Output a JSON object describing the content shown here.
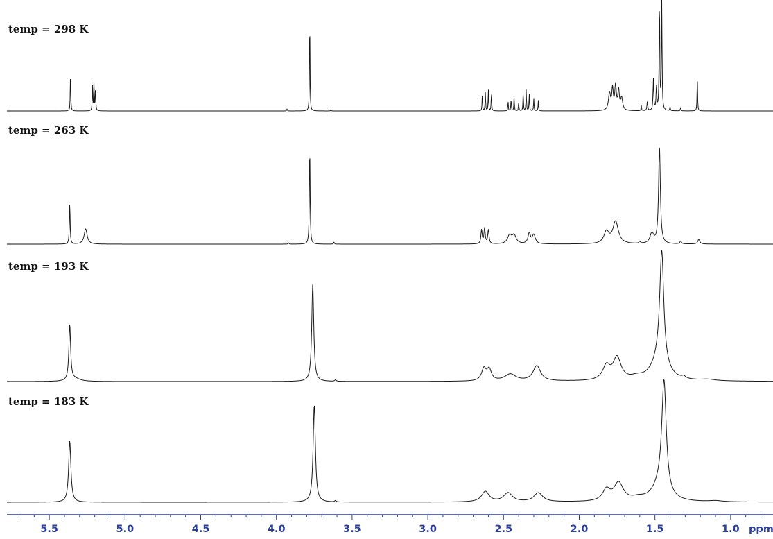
{
  "chart_data": {
    "type": "line",
    "title": "",
    "xlabel": "ppm",
    "ylabel": "",
    "x_reversed": true,
    "xlim": [
      5.78,
      0.72
    ],
    "ticks_major": [
      5.5,
      5.0,
      4.5,
      4.0,
      3.5,
      3.0,
      2.5,
      2.0,
      1.5,
      1.0
    ],
    "tick_labels": [
      "5.5",
      "5.0",
      "4.5",
      "4.0",
      "3.5",
      "3.0",
      "2.5",
      "2.0",
      "1.5",
      "1.0"
    ],
    "minor_tick_step": 0.1,
    "colors": {
      "spectrum": "#1a1a1a",
      "axis": "#2b3f9e",
      "label": "#111111"
    },
    "series": [
      {
        "name": "temp = 298 K",
        "peaks": [
          {
            "x": 5.36,
            "h": 0.57,
            "w": 0.002
          },
          {
            "x": 5.215,
            "h": 0.38,
            "w": 0.002
          },
          {
            "x": 5.205,
            "h": 0.4,
            "w": 0.002
          },
          {
            "x": 5.195,
            "h": 0.36,
            "w": 0.002
          },
          {
            "x": 3.93,
            "h": 0.03,
            "w": 0.002
          },
          {
            "x": 3.78,
            "h": 1.4,
            "w": 0.002
          },
          {
            "x": 3.64,
            "h": 0.02,
            "w": 0.002
          },
          {
            "x": 2.64,
            "h": 0.25,
            "w": 0.002
          },
          {
            "x": 2.62,
            "h": 0.28,
            "w": 0.002
          },
          {
            "x": 2.6,
            "h": 0.3,
            "w": 0.002
          },
          {
            "x": 2.58,
            "h": 0.27,
            "w": 0.002
          },
          {
            "x": 2.47,
            "h": 0.14,
            "w": 0.002
          },
          {
            "x": 2.45,
            "h": 0.17,
            "w": 0.002
          },
          {
            "x": 2.43,
            "h": 0.2,
            "w": 0.002
          },
          {
            "x": 2.4,
            "h": 0.12,
            "w": 0.002
          },
          {
            "x": 2.37,
            "h": 0.27,
            "w": 0.002
          },
          {
            "x": 2.35,
            "h": 0.3,
            "w": 0.002
          },
          {
            "x": 2.33,
            "h": 0.25,
            "w": 0.002
          },
          {
            "x": 2.3,
            "h": 0.18,
            "w": 0.002
          },
          {
            "x": 2.27,
            "h": 0.15,
            "w": 0.002
          },
          {
            "x": 1.8,
            "h": 0.25,
            "w": 0.008
          },
          {
            "x": 1.78,
            "h": 0.3,
            "w": 0.006
          },
          {
            "x": 1.76,
            "h": 0.35,
            "w": 0.006
          },
          {
            "x": 1.74,
            "h": 0.28,
            "w": 0.006
          },
          {
            "x": 1.72,
            "h": 0.18,
            "w": 0.008
          },
          {
            "x": 1.59,
            "h": 0.08,
            "w": 0.002
          },
          {
            "x": 1.55,
            "h": 0.14,
            "w": 0.003
          },
          {
            "x": 1.51,
            "h": 0.45,
            "w": 0.003
          },
          {
            "x": 1.49,
            "h": 0.35,
            "w": 0.003
          },
          {
            "x": 1.47,
            "h": 1.6,
            "w": 0.0025
          },
          {
            "x": 1.455,
            "h": 1.6,
            "w": 0.0025
          },
          {
            "x": 1.4,
            "h": 0.06,
            "w": 0.002
          },
          {
            "x": 1.33,
            "h": 0.06,
            "w": 0.002
          },
          {
            "x": 1.22,
            "h": 0.5,
            "w": 0.002
          }
        ]
      },
      {
        "name": "temp = 263 K",
        "peaks": [
          {
            "x": 5.365,
            "h": 0.58,
            "w": 0.003
          },
          {
            "x": 5.26,
            "h": 0.22,
            "w": 0.012
          },
          {
            "x": 3.92,
            "h": 0.02,
            "w": 0.003
          },
          {
            "x": 3.78,
            "h": 1.4,
            "w": 0.003
          },
          {
            "x": 3.62,
            "h": 0.03,
            "w": 0.003
          },
          {
            "x": 2.645,
            "h": 0.2,
            "w": 0.005
          },
          {
            "x": 2.625,
            "h": 0.22,
            "w": 0.005
          },
          {
            "x": 2.6,
            "h": 0.2,
            "w": 0.005
          },
          {
            "x": 2.46,
            "h": 0.12,
            "w": 0.016
          },
          {
            "x": 2.43,
            "h": 0.12,
            "w": 0.016
          },
          {
            "x": 2.33,
            "h": 0.15,
            "w": 0.01
          },
          {
            "x": 2.3,
            "h": 0.13,
            "w": 0.012
          },
          {
            "x": 1.82,
            "h": 0.17,
            "w": 0.02
          },
          {
            "x": 1.76,
            "h": 0.32,
            "w": 0.022
          },
          {
            "x": 1.52,
            "h": 0.15,
            "w": 0.015
          },
          {
            "x": 1.47,
            "h": 1.4,
            "w": 0.007
          },
          {
            "x": 1.6,
            "h": 0.03,
            "w": 0.005
          },
          {
            "x": 1.33,
            "h": 0.04,
            "w": 0.006
          },
          {
            "x": 1.21,
            "h": 0.07,
            "w": 0.008
          }
        ]
      },
      {
        "name": "temp = 193 K",
        "peaks": [
          {
            "x": 5.365,
            "h": 0.8,
            "w": 0.007
          },
          {
            "x": 5.33,
            "h": 0.04,
            "w": 0.04
          },
          {
            "x": 3.76,
            "h": 1.4,
            "w": 0.008
          },
          {
            "x": 3.61,
            "h": 0.02,
            "w": 0.006
          },
          {
            "x": 2.63,
            "h": 0.17,
            "w": 0.018
          },
          {
            "x": 2.595,
            "h": 0.16,
            "w": 0.018
          },
          {
            "x": 2.455,
            "h": 0.1,
            "w": 0.045
          },
          {
            "x": 2.28,
            "h": 0.22,
            "w": 0.03
          },
          {
            "x": 1.82,
            "h": 0.2,
            "w": 0.03
          },
          {
            "x": 1.75,
            "h": 0.32,
            "w": 0.032
          },
          {
            "x": 1.62,
            "h": 0.04,
            "w": 0.05
          },
          {
            "x": 1.47,
            "h": 0.3,
            "w": 0.06
          },
          {
            "x": 1.455,
            "h": 1.6,
            "w": 0.016
          },
          {
            "x": 1.31,
            "h": 0.03,
            "w": 0.015
          },
          {
            "x": 1.15,
            "h": 0.02,
            "w": 0.06
          }
        ]
      },
      {
        "name": "temp = 183 K",
        "peaks": [
          {
            "x": 5.365,
            "h": 0.88,
            "w": 0.009
          },
          {
            "x": 3.75,
            "h": 1.4,
            "w": 0.009
          },
          {
            "x": 3.61,
            "h": 0.02,
            "w": 0.006
          },
          {
            "x": 2.62,
            "h": 0.15,
            "w": 0.03
          },
          {
            "x": 2.47,
            "h": 0.13,
            "w": 0.035
          },
          {
            "x": 2.27,
            "h": 0.13,
            "w": 0.035
          },
          {
            "x": 1.82,
            "h": 0.16,
            "w": 0.03
          },
          {
            "x": 1.74,
            "h": 0.26,
            "w": 0.038
          },
          {
            "x": 1.61,
            "h": 0.04,
            "w": 0.05
          },
          {
            "x": 1.44,
            "h": 1.6,
            "w": 0.018
          },
          {
            "x": 1.47,
            "h": 0.2,
            "w": 0.06
          },
          {
            "x": 1.1,
            "h": 0.015,
            "w": 0.05
          }
        ]
      }
    ]
  }
}
